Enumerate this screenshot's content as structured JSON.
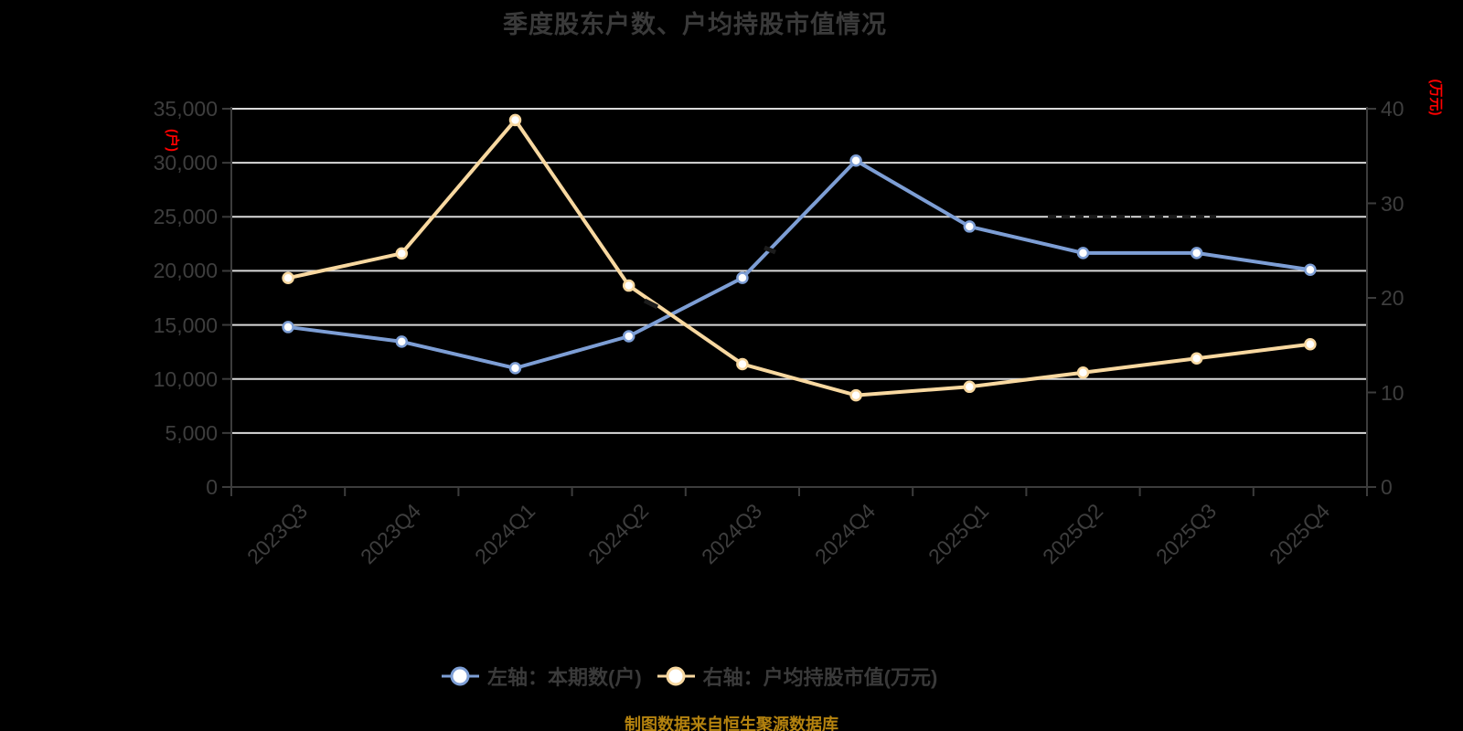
{
  "title": "季度股东户数、户均持股市值情况",
  "source_note": "制图数据来自恒生聚源数据库",
  "colors": {
    "background": "#000000",
    "title_text": "#3A3A3A",
    "axis_line": "#3C3C3C",
    "tick_text": "#3E3E3E",
    "gridline": "#DADADA",
    "series_blue": "#7D9ED5",
    "series_yellow": "#F8D8A0",
    "marker_fill": "#FFFFFF",
    "axis_unit_red": "#FF0000",
    "source_text": "#B5830F",
    "dark_artifact": "#1C1C1C"
  },
  "chart_data": {
    "type": "line",
    "title": "季度股东户数、户均持股市值情况",
    "categories": [
      "2023Q3",
      "2023Q4",
      "2024Q1",
      "2024Q2",
      "2024Q3",
      "2024Q4",
      "2025Q1",
      "2025Q2",
      "2025Q3",
      "2025Q4"
    ],
    "series": [
      {
        "name": "左轴：本期数(户)",
        "axis": "left",
        "color": "#7D9ED5",
        "values": [
          14800,
          13450,
          11000,
          13950,
          19350,
          30200,
          24100,
          21650,
          21650,
          20100
        ]
      },
      {
        "name": "右轴：户均持股市值(万元)",
        "axis": "right",
        "color": "#F8D8A0",
        "values": [
          22.1,
          24.7,
          38.8,
          21.3,
          13.0,
          9.7,
          10.6,
          12.1,
          13.6,
          15.1
        ]
      }
    ],
    "left_axis": {
      "unit": "(户)",
      "min": 0,
      "max": 35000,
      "label_step": 5000,
      "grid_step": 5000
    },
    "right_axis": {
      "unit": "(万元)",
      "min": 0,
      "max": 40,
      "label_step": 10,
      "grid_step": 5
    },
    "grid": true,
    "legend_position": "bottom",
    "artifacts": {
      "gridline_dark_dashes": {
        "at_left_value": 25000,
        "x_ranges": [
          [
            1146,
            1237
          ],
          [
            1248,
            1330
          ]
        ]
      },
      "line_dark_notches": [
        [
          705,
          329,
          719,
          336
        ],
        [
          836,
          271,
          848,
          276
        ]
      ]
    }
  }
}
